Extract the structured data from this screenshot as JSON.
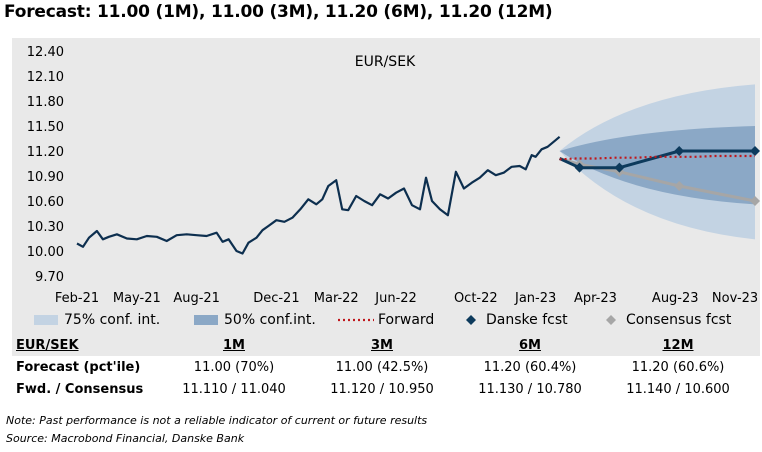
{
  "title": "Forecast: 11.00 (1M), 11.00 (3M), 11.20 (6M), 11.20 (12M)",
  "chart_data": {
    "type": "line",
    "title": "EUR/SEK",
    "ylim": [
      9.7,
      12.4
    ],
    "yticks": [
      "12.40",
      "12.10",
      "11.80",
      "11.50",
      "11.20",
      "10.90",
      "10.60",
      "10.30",
      "10.00",
      "9.70"
    ],
    "ytick_values": [
      12.4,
      12.1,
      11.8,
      11.5,
      11.2,
      10.9,
      10.6,
      10.3,
      10.0,
      9.7
    ],
    "xlim_months": [
      0,
      34
    ],
    "xticks": [
      {
        "label": "Feb-21",
        "m": 0
      },
      {
        "label": "May-21",
        "m": 3
      },
      {
        "label": "Aug-21",
        "m": 6
      },
      {
        "label": "Dec-21",
        "m": 10
      },
      {
        "label": "Mar-22",
        "m": 13
      },
      {
        "label": "Jun-22",
        "m": 16
      },
      {
        "label": "Oct-22",
        "m": 20
      },
      {
        "label": "Jan-23",
        "m": 23
      },
      {
        "label": "Apr-23",
        "m": 26
      },
      {
        "label": "Aug-23",
        "m": 30
      },
      {
        "label": "Nov-23",
        "m": 33
      }
    ],
    "colors": {
      "history": "#0d2f4f",
      "band75": "#c3d3e3",
      "band50": "#8ba8c6",
      "forward": "#c0171c",
      "danske": "#0d3a5c",
      "consensus": "#a6a6a6"
    },
    "history": {
      "name": "EUR/SEK spot",
      "x": [
        0,
        0.3,
        0.6,
        1,
        1.3,
        1.6,
        2,
        2.5,
        3,
        3.5,
        4,
        4.5,
        5,
        5.5,
        6,
        6.5,
        7,
        7.3,
        7.6,
        8,
        8.3,
        8.6,
        9,
        9.3,
        9.6,
        10,
        10.4,
        10.8,
        11.2,
        11.6,
        12,
        12.3,
        12.6,
        13,
        13.3,
        13.6,
        14,
        14.4,
        14.8,
        15.2,
        15.6,
        16,
        16.4,
        16.8,
        17.2,
        17.5,
        17.8,
        18.2,
        18.6,
        19,
        19.4,
        19.8,
        20.2,
        20.6,
        21,
        21.4,
        21.8,
        22.2,
        22.5,
        22.8,
        23,
        23.3,
        23.6,
        24,
        24.2
      ],
      "y": [
        10.09,
        10.05,
        10.16,
        10.24,
        10.14,
        10.17,
        10.2,
        10.15,
        10.14,
        10.18,
        10.17,
        10.12,
        10.19,
        10.2,
        10.19,
        10.18,
        10.22,
        10.11,
        10.14,
        10.0,
        9.97,
        10.1,
        10.16,
        10.25,
        10.3,
        10.37,
        10.35,
        10.4,
        10.5,
        10.62,
        10.56,
        10.62,
        10.78,
        10.85,
        10.5,
        10.49,
        10.66,
        10.6,
        10.55,
        10.68,
        10.63,
        10.7,
        10.75,
        10.55,
        10.5,
        10.88,
        10.6,
        10.5,
        10.43,
        10.95,
        10.75,
        10.82,
        10.88,
        10.97,
        10.91,
        10.94,
        11.01,
        11.02,
        10.98,
        11.15,
        11.13,
        11.22,
        11.25,
        11.33,
        11.37
      ]
    },
    "fan": {
      "x": [
        24.2,
        34
      ],
      "start": 11.2,
      "band75_end": [
        10.14,
        12.0
      ],
      "band50_end": [
        10.56,
        11.5
      ]
    },
    "series": [
      {
        "name": "Forward",
        "x": [
          24.2,
          25,
          26,
          27,
          28,
          29,
          30,
          31,
          32,
          33,
          34
        ],
        "values": [
          11.1,
          11.11,
          11.11,
          11.12,
          11.12,
          11.13,
          11.13,
          11.13,
          11.14,
          11.14,
          11.14
        ]
      },
      {
        "name": "Danske fcst",
        "x": [
          24.2,
          25.2,
          27.2,
          30.2,
          34
        ],
        "values": [
          11.11,
          11.0,
          11.0,
          11.2,
          11.2
        ]
      },
      {
        "name": "Consensus fcst",
        "x": [
          24.2,
          25.2,
          27.2,
          30.2,
          34
        ],
        "values": [
          11.11,
          11.04,
          10.95,
          10.78,
          10.6
        ]
      }
    ]
  },
  "legend": {
    "band75": "75% conf. int.",
    "band50": "50% conf.int.",
    "forward": "Forward",
    "danske": "Danske fcst",
    "consensus": "Consensus fcst"
  },
  "table": {
    "header": [
      "EUR/SEK",
      "1M",
      "3M",
      "6M",
      "12M"
    ],
    "forecast": [
      "Forecast (pct'ile)",
      "11.00 (70%)",
      "11.00 (42.5%)",
      "11.20 (60.4%)",
      "11.20 (60.6%)"
    ],
    "forward": [
      "Fwd. / Consensus",
      "11.110 / 11.040",
      "11.120 / 10.950",
      "11.130 / 10.780",
      "11.140 / 10.600"
    ]
  },
  "note": "Note: Past performance is not a reliable indicator of current or future results",
  "source": "Source: Macrobond Financial, Danske Bank"
}
